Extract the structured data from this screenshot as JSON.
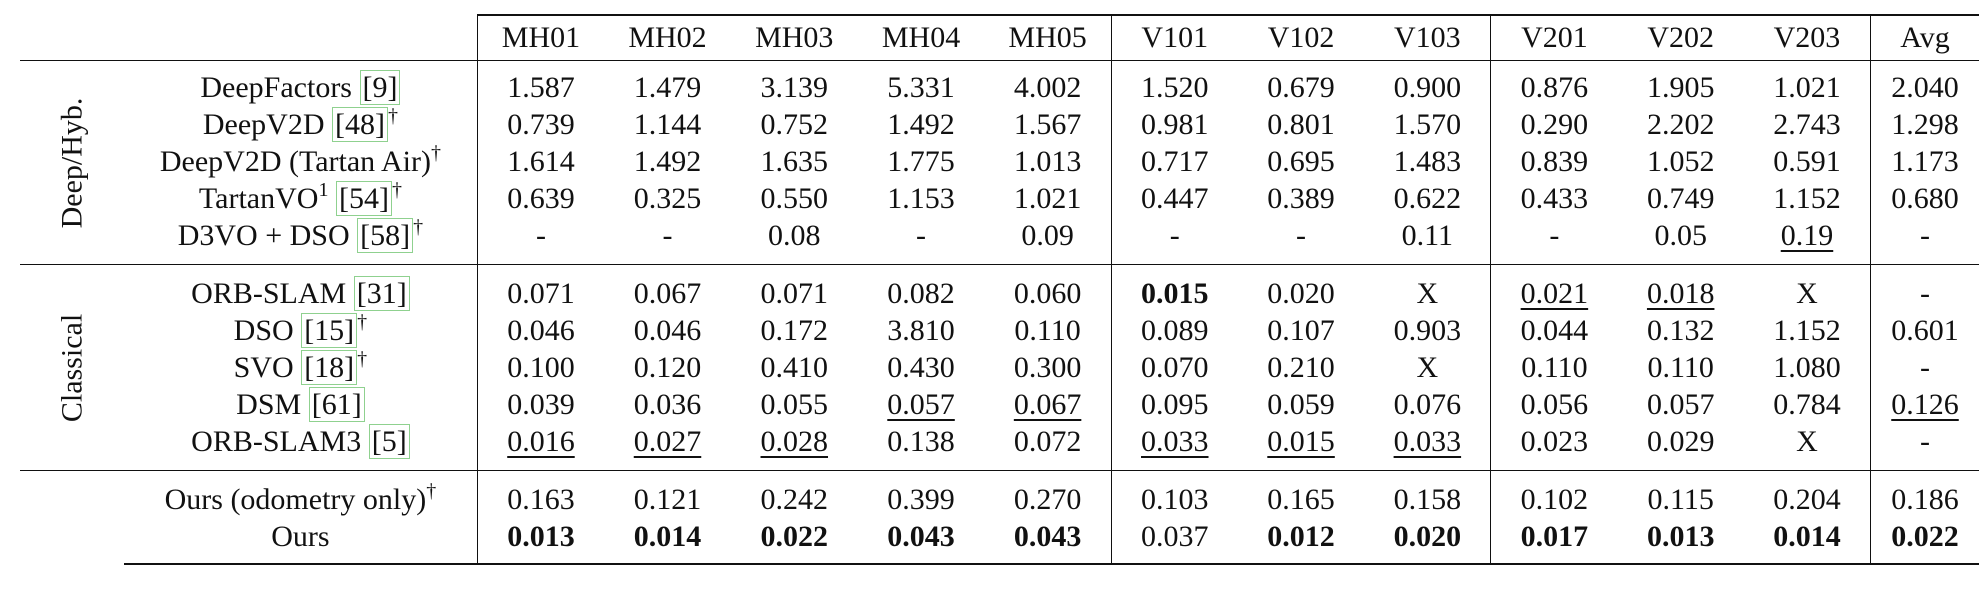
{
  "header": {
    "columns": [
      "MH01",
      "MH02",
      "MH03",
      "MH04",
      "MH05",
      "V101",
      "V102",
      "V103",
      "V201",
      "V202",
      "V203",
      "Avg"
    ]
  },
  "groups": [
    {
      "label": "Deep/Hyb.",
      "rows": [
        {
          "method": "DeepFactors",
          "cite": "[9]",
          "sup": "",
          "dagger": "",
          "values": [
            "1.587",
            "1.479",
            "3.139",
            "5.331",
            "4.002",
            "1.520",
            "0.679",
            "0.900",
            "0.876",
            "1.905",
            "1.021",
            "2.040"
          ],
          "underline": [],
          "bold": []
        },
        {
          "method": "DeepV2D",
          "cite": "[48]",
          "sup": "",
          "dagger": "†",
          "values": [
            "0.739",
            "1.144",
            "0.752",
            "1.492",
            "1.567",
            "0.981",
            "0.801",
            "1.570",
            "0.290",
            "2.202",
            "2.743",
            "1.298"
          ],
          "underline": [],
          "bold": []
        },
        {
          "method": "DeepV2D (Tartan Air)",
          "cite": "",
          "sup": "",
          "dagger": "†",
          "values": [
            "1.614",
            "1.492",
            "1.635",
            "1.775",
            "1.013",
            "0.717",
            "0.695",
            "1.483",
            "0.839",
            "1.052",
            "0.591",
            "1.173"
          ],
          "underline": [],
          "bold": []
        },
        {
          "method": "TartanVO",
          "cite": "[54]",
          "sup": "1",
          "dagger": "†",
          "values": [
            "0.639",
            "0.325",
            "0.550",
            "1.153",
            "1.021",
            "0.447",
            "0.389",
            "0.622",
            "0.433",
            "0.749",
            "1.152",
            "0.680"
          ],
          "underline": [],
          "bold": []
        },
        {
          "method": "D3VO + DSO",
          "cite": "[58]",
          "sup": "",
          "dagger": "†",
          "values": [
            "-",
            "-",
            "0.08",
            "-",
            "0.09",
            "-",
            "-",
            "0.11",
            "-",
            "0.05",
            "0.19",
            "-"
          ],
          "underline": [
            10
          ],
          "bold": []
        }
      ]
    },
    {
      "label": "Classical",
      "rows": [
        {
          "method": "ORB-SLAM",
          "cite": "[31]",
          "sup": "",
          "dagger": "",
          "values": [
            "0.071",
            "0.067",
            "0.071",
            "0.082",
            "0.060",
            "0.015",
            "0.020",
            "X",
            "0.021",
            "0.018",
            "X",
            "-"
          ],
          "underline": [
            8,
            9
          ],
          "bold": [
            5
          ]
        },
        {
          "method": "DSO",
          "cite": "[15]",
          "sup": "",
          "dagger": "†",
          "values": [
            "0.046",
            "0.046",
            "0.172",
            "3.810",
            "0.110",
            "0.089",
            "0.107",
            "0.903",
            "0.044",
            "0.132",
            "1.152",
            "0.601"
          ],
          "underline": [],
          "bold": []
        },
        {
          "method": "SVO",
          "cite": "[18]",
          "sup": "",
          "dagger": "†",
          "values": [
            "0.100",
            "0.120",
            "0.410",
            "0.430",
            "0.300",
            "0.070",
            "0.210",
            "X",
            "0.110",
            "0.110",
            "1.080",
            "-"
          ],
          "underline": [],
          "bold": []
        },
        {
          "method": "DSM",
          "cite": "[61]",
          "sup": "",
          "dagger": "",
          "values": [
            "0.039",
            "0.036",
            "0.055",
            "0.057",
            "0.067",
            "0.095",
            "0.059",
            "0.076",
            "0.056",
            "0.057",
            "0.784",
            "0.126"
          ],
          "underline": [
            3,
            4,
            11
          ],
          "bold": []
        },
        {
          "method": "ORB-SLAM3",
          "cite": "[5]",
          "sup": "",
          "dagger": "",
          "values": [
            "0.016",
            "0.027",
            "0.028",
            "0.138",
            "0.072",
            "0.033",
            "0.015",
            "0.033",
            "0.023",
            "0.029",
            "X",
            "-"
          ],
          "underline": [
            0,
            1,
            2,
            5,
            6,
            7
          ],
          "bold": []
        }
      ]
    },
    {
      "label": "",
      "rows": [
        {
          "method": "Ours (odometry only)",
          "cite": "",
          "sup": "",
          "dagger": "†",
          "values": [
            "0.163",
            "0.121",
            "0.242",
            "0.399",
            "0.270",
            "0.103",
            "0.165",
            "0.158",
            "0.102",
            "0.115",
            "0.204",
            "0.186"
          ],
          "underline": [],
          "bold": []
        },
        {
          "method": "Ours",
          "cite": "",
          "sup": "",
          "dagger": "",
          "values": [
            "0.013",
            "0.014",
            "0.022",
            "0.043",
            "0.043",
            "0.037",
            "0.012",
            "0.020",
            "0.017",
            "0.013",
            "0.014",
            "0.022"
          ],
          "underline": [],
          "bold": [
            0,
            1,
            2,
            3,
            4,
            6,
            7,
            8,
            9,
            10,
            11
          ]
        }
      ]
    }
  ]
}
